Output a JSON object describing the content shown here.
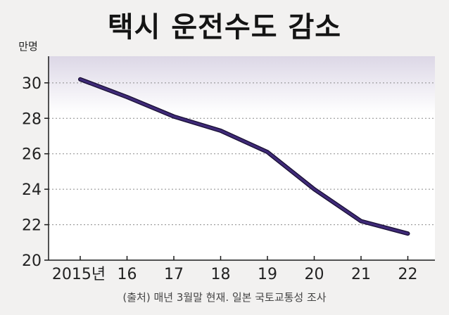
{
  "chart_data": {
    "type": "line",
    "title": "택시 운전수도 감소",
    "ylabel": "만명",
    "categories": [
      "2015년",
      "16",
      "17",
      "18",
      "19",
      "20",
      "21",
      "22"
    ],
    "series": [
      {
        "values": [
          30.2,
          29.2,
          28.1,
          27.3,
          26.1,
          24.0,
          22.2,
          21.5
        ]
      }
    ],
    "yticks": [
      20,
      22,
      24,
      26,
      28,
      30
    ],
    "ylim": [
      20,
      31.5
    ],
    "grid": true,
    "source": "(출처) 매년 3월말 현재. 일본 국토교통성 조사"
  },
  "colors": {
    "line": "#3f2a78",
    "line_shadow": "#160d30",
    "grid": "#8a8a8a",
    "axis": "#1a1a1a"
  }
}
